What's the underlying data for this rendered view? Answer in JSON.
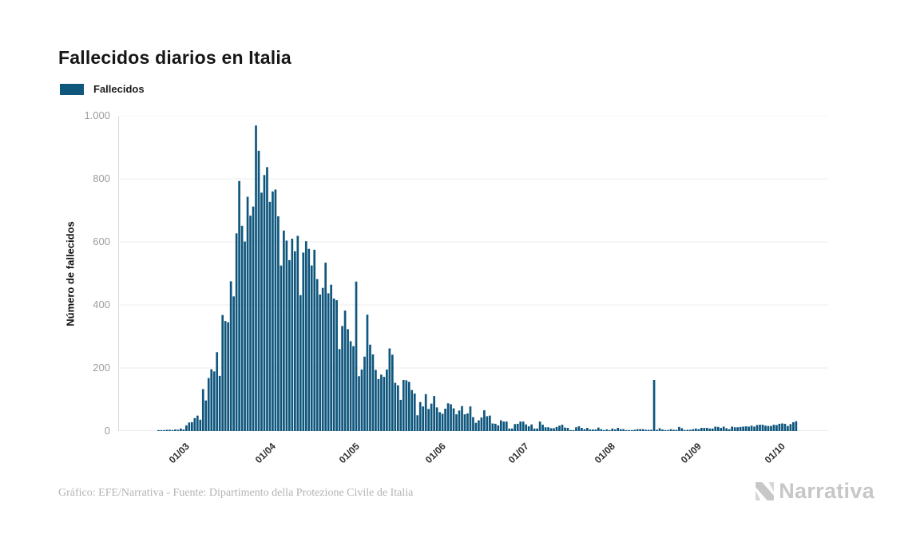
{
  "header": {
    "title": "Fallecidos diarios en Italia"
  },
  "legend": {
    "items": [
      {
        "label": "Fallecidos",
        "color": "#0f567d"
      }
    ]
  },
  "footer": {
    "credit": "Gráfico: EFE/Narrativa - Fuente: Dipartimento della Protezione Civile de Italia",
    "brand": "Narrativa"
  },
  "colors": {
    "bar": "#0f567d",
    "grid": "#ededed",
    "axis_line": "#d9d9d9",
    "y_tick_text": "#9e9e9e",
    "x_tick_text": "#2d2d2d"
  },
  "chart_data": {
    "type": "bar",
    "title": "Fallecidos diarios en Italia",
    "xlabel": "",
    "ylabel": "Número de fallecidos",
    "ylim": [
      0,
      1000
    ],
    "grid": "horizontal",
    "legend_position": "top-left",
    "bar_color": "#0f567d",
    "start_date": "21/02/2020",
    "end_date": "07/10/2020",
    "pad_days_before": 14,
    "pad_days_after": 11,
    "y_ticks": [
      {
        "value": 0,
        "label": "0"
      },
      {
        "value": 200,
        "label": "200"
      },
      {
        "value": 400,
        "label": "400"
      },
      {
        "value": 600,
        "label": "600"
      },
      {
        "value": 800,
        "label": "800"
      },
      {
        "value": 1000,
        "label": "1.000"
      }
    ],
    "x_ticks": [
      {
        "offset": 9,
        "label": "01/03"
      },
      {
        "offset": 40,
        "label": "01/04"
      },
      {
        "offset": 70,
        "label": "01/05"
      },
      {
        "offset": 101,
        "label": "01/06"
      },
      {
        "offset": 131,
        "label": "01/07"
      },
      {
        "offset": 162,
        "label": "01/08"
      },
      {
        "offset": 193,
        "label": "01/09"
      },
      {
        "offset": 223,
        "label": "01/10"
      }
    ],
    "series": [
      {
        "name": "Fallecidos",
        "values": [
          1,
          1,
          1,
          4,
          4,
          2,
          5,
          4,
          8,
          5,
          18,
          27,
          28,
          41,
          49,
          36,
          133,
          97,
          168,
          196,
          189,
          250,
          175,
          368,
          349,
          345,
          475,
          427,
          627,
          793,
          651,
          601,
          743,
          683,
          712,
          969,
          889,
          756,
          812,
          837,
          727,
          760,
          766,
          681,
          525,
          636,
          604,
          542,
          610,
          570,
          619,
          431,
          566,
          602,
          578,
          525,
          575,
          482,
          433,
          454,
          534,
          437,
          464,
          420,
          415,
          260,
          333,
          382,
          323,
          285,
          269,
          474,
          174,
          195,
          236,
          369,
          274,
          243,
          194,
          165,
          179,
          172,
          195,
          262,
          242,
          153,
          145,
          99,
          162,
          161,
          156,
          130,
          119,
          50,
          92,
          78,
          117,
          70,
          87,
          111,
          75,
          60,
          55,
          71,
          88,
          85,
          72,
          53,
          65,
          79,
          53,
          56,
          78,
          44,
          26,
          34,
          43,
          66,
          47,
          49,
          24,
          23,
          18,
          34,
          30,
          30,
          8,
          8,
          22,
          23,
          30,
          30,
          21,
          15,
          21,
          8,
          8,
          30,
          20,
          12,
          12,
          9,
          9,
          13,
          17,
          20,
          11,
          10,
          3,
          3,
          12,
          15,
          10,
          6,
          10,
          5,
          5,
          5,
          11,
          6,
          3,
          5,
          3,
          8,
          5,
          10,
          6,
          6,
          3,
          2,
          2,
          4,
          6,
          6,
          6,
          4,
          4,
          4,
          162,
          4,
          9,
          5,
          3,
          3,
          6,
          4,
          4,
          13,
          9,
          3,
          4,
          4,
          6,
          8,
          6,
          10,
          10,
          10,
          8,
          8,
          14,
          13,
          10,
          14,
          9,
          6,
          14,
          12,
          12,
          13,
          14,
          15,
          14,
          17,
          14,
          19,
          20,
          20,
          17,
          16,
          16,
          20,
          19,
          23,
          24,
          23,
          16,
          22,
          28,
          31
        ]
      }
    ]
  }
}
